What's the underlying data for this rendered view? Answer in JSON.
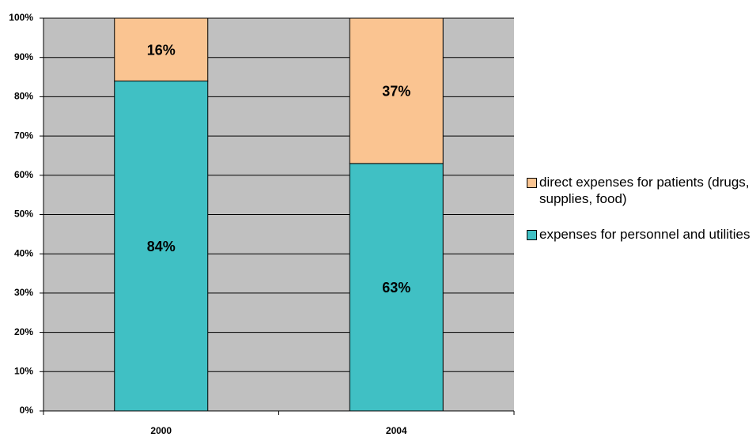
{
  "chart_data": {
    "type": "stacked-bar",
    "categories": [
      "2000",
      "2004"
    ],
    "series": [
      {
        "name": "expenses for personnel and utilities",
        "color": "#40c0c4",
        "values": [
          84,
          63
        ],
        "value_labels": [
          "84%",
          "63%"
        ]
      },
      {
        "name": "direct expenses for patients (drugs, supplies, food)",
        "color": "#fac491",
        "values": [
          16,
          37
        ],
        "value_labels": [
          "16%",
          "37%"
        ]
      }
    ],
    "ylim": [
      0,
      100
    ],
    "yticks": [
      {
        "value": 0,
        "label": "0%"
      },
      {
        "value": 10,
        "label": "10%"
      },
      {
        "value": 20,
        "label": "20%"
      },
      {
        "value": 30,
        "label": "30%"
      },
      {
        "value": 40,
        "label": "40%"
      },
      {
        "value": 50,
        "label": "50%"
      },
      {
        "value": 60,
        "label": "60%"
      },
      {
        "value": 70,
        "label": "70%"
      },
      {
        "value": 80,
        "label": "80%"
      },
      {
        "value": 90,
        "label": "90%"
      },
      {
        "value": 100,
        "label": "100%"
      }
    ],
    "grid": true,
    "plot_background": "#c0c0c0"
  }
}
